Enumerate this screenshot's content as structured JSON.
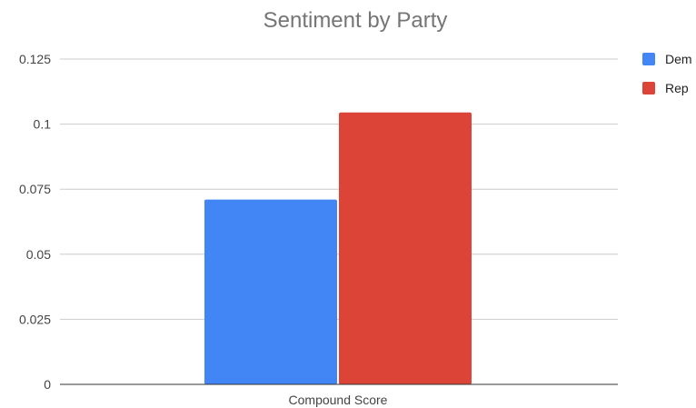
{
  "chart_data": {
    "type": "bar",
    "title": "Sentiment by Party",
    "categories": [
      "Compound Score"
    ],
    "series": [
      {
        "name": "Dem",
        "values": [
          0.071
        ],
        "color": "#4285f4"
      },
      {
        "name": "Rep",
        "values": [
          0.1045
        ],
        "color": "#db4437"
      }
    ],
    "ylim": [
      0,
      0.125
    ],
    "yticks": [
      0,
      0.025,
      0.05,
      0.075,
      0.1,
      0.125
    ],
    "ytick_labels": [
      "0",
      "0.025",
      "0.05",
      "0.075",
      "0.1",
      "0.125"
    ],
    "grid": true,
    "legend_position": "right"
  }
}
